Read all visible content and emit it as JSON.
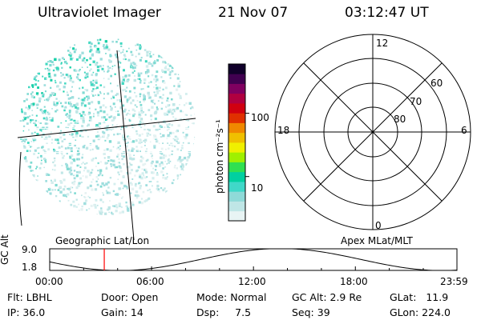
{
  "header": {
    "instrument": "Ultraviolet Imager",
    "date": "21 Nov 07",
    "time": "03:12:47 UT"
  },
  "colorbar": {
    "unit_label": "photon cm⁻²s⁻¹",
    "ticks": [
      {
        "label": "100",
        "value": 100
      },
      {
        "label": "10",
        "value": 10
      }
    ],
    "range": [
      2,
      600
    ],
    "colors": [
      "#e8f4f4",
      "#bfe6e6",
      "#8fdad8",
      "#40d8c8",
      "#00d0a0",
      "#30e050",
      "#a0f000",
      "#f0f000",
      "#f0c000",
      "#f08800",
      "#e03000",
      "#d00010",
      "#b00040",
      "#800060",
      "#400050",
      "#10002a"
    ]
  },
  "polar_plot": {
    "mlt_labels": [
      {
        "label": "12",
        "pos": "top"
      },
      {
        "label": "18",
        "pos": "left"
      },
      {
        "label": "6",
        "pos": "right"
      },
      {
        "label": "0",
        "pos": "bottom"
      }
    ],
    "mlat_rings": [
      {
        "label": "60",
        "value": 60
      },
      {
        "label": "70",
        "value": 70
      },
      {
        "label": "80",
        "value": 80
      }
    ]
  },
  "timeline": {
    "left_caption": "Geographic Lat/Lon",
    "right_caption": "Apex MLat/MLT",
    "y_title": "GC Alt",
    "y_ticks": [
      {
        "label": "9.0",
        "value": 9.0
      },
      {
        "label": "1.8",
        "value": 1.8
      }
    ],
    "x_ticks": [
      {
        "label": "00:00",
        "hour": 0
      },
      {
        "label": "06:00",
        "hour": 6
      },
      {
        "label": "12:00",
        "hour": 12
      },
      {
        "label": "18:00",
        "hour": 18
      },
      {
        "label": "23:59",
        "hour": 23.983
      }
    ],
    "current_time_hour": 3.213,
    "marker_color": "#ff0000"
  },
  "status": {
    "flt": "Flt: LBHL",
    "ip": "IP: 36.0",
    "door": "Door: Open",
    "gain": "Gain: 14",
    "mode": "Mode: Normal",
    "dsp": "Dsp:     7.5",
    "gc_alt": "GC Alt: 2.9 Re",
    "seq": "Seq: 39",
    "glat": "GLat:   11.9",
    "glon": "GLon: 224.0"
  }
}
